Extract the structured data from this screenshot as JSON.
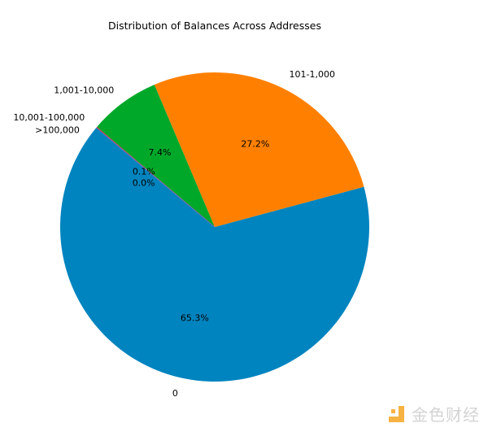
{
  "chart_data": {
    "type": "pie",
    "title": "Distribution of Balances Across Addresses",
    "labels": [
      "0",
      "101-1,000",
      "1,001-10,000",
      "10,001-100,000",
      ">100,000"
    ],
    "values": [
      65.3,
      27.2,
      7.4,
      0.1,
      0.0
    ],
    "pct_labels": [
      "65.3%",
      "27.2%",
      "7.4%",
      "0.1%",
      "0.0%"
    ],
    "colors": [
      "#0084bf",
      "#ff8000",
      "#00a82a",
      "#d62728",
      "#9467bd"
    ],
    "start_angle_deg": 140,
    "direction": "counterclockwise"
  },
  "watermark": {
    "text": "金色财经",
    "color": "#f5a623"
  }
}
